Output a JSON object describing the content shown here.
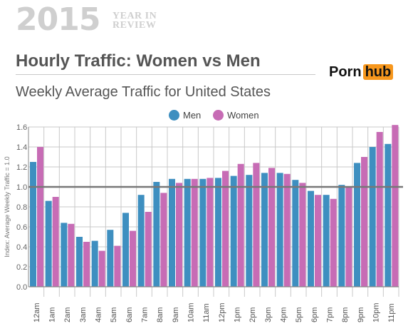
{
  "header": {
    "year": "2015",
    "year_in_review_line1": "YEAR IN",
    "year_in_review_line2": "REVIEW",
    "title": "Hourly Traffic: Women vs Men",
    "subtitle": "Weekly Average Traffic for United States"
  },
  "logo": {
    "part1": "Porn",
    "part2": "hub",
    "accent": "#f7971d"
  },
  "colors": {
    "men": "#3e8fc0",
    "women": "#c76cb5",
    "baseline": "#777777",
    "grid": "#c8c8c8"
  },
  "chart_data": {
    "type": "bar",
    "ylabel": "Index: Average Weekly Traffic = 1.0",
    "ylim": [
      0,
      1.6
    ],
    "yticks": [
      "0.0",
      "0.2",
      "0.4",
      "0.6",
      "0.8",
      "1.0",
      "1.2",
      "1.4",
      "1.6"
    ],
    "reference_line": 1.0,
    "legend_position": "top-center",
    "categories": [
      "12am",
      "1am",
      "2am",
      "3am",
      "4am",
      "5am",
      "6am",
      "7am",
      "8am",
      "9am",
      "10am",
      "11am",
      "12pm",
      "1pm",
      "2pm",
      "3pm",
      "4pm",
      "5pm",
      "6pm",
      "7pm",
      "8pm",
      "9pm",
      "10pm",
      "11pm"
    ],
    "series": [
      {
        "name": "Men",
        "values": [
          1.25,
          0.86,
          0.64,
          0.5,
          0.46,
          0.57,
          0.74,
          0.92,
          1.05,
          1.08,
          1.08,
          1.08,
          1.09,
          1.11,
          1.12,
          1.14,
          1.14,
          1.07,
          0.96,
          0.92,
          1.02,
          1.24,
          1.4,
          1.43
        ]
      },
      {
        "name": "Women",
        "values": [
          1.4,
          0.9,
          0.63,
          0.45,
          0.36,
          0.41,
          0.56,
          0.75,
          0.94,
          1.04,
          1.08,
          1.09,
          1.16,
          1.23,
          1.24,
          1.19,
          1.13,
          1.04,
          0.92,
          0.88,
          1.0,
          1.3,
          1.55,
          1.62
        ]
      }
    ]
  }
}
